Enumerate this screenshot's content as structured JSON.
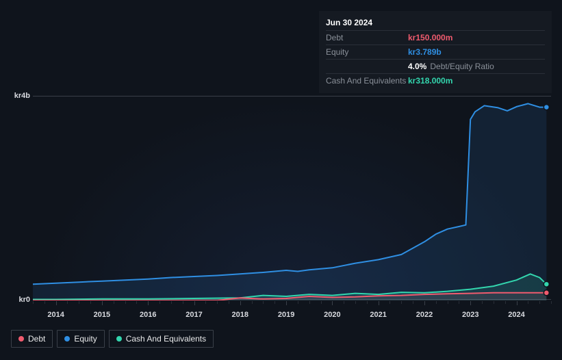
{
  "tooltip": {
    "date": "Jun 30 2024",
    "rows": [
      {
        "label": "Debt",
        "value": "kr150.000m",
        "color": "#f05b6e"
      },
      {
        "label": "Equity",
        "value": "kr3.789b",
        "color": "#2f8fe3"
      },
      {
        "label": "",
        "value": "4.0%",
        "suffix": "Debt/Equity Ratio",
        "color": "#ffffff"
      },
      {
        "label": "Cash And Equivalents",
        "value": "kr318.000m",
        "color": "#33d6ae"
      }
    ]
  },
  "chart": {
    "type": "area",
    "background_color": "#0f141c",
    "grid_color": "#3a4049",
    "ylim": [
      0,
      4
    ],
    "y_unit_prefix": "kr",
    "y_unit_suffix": "b",
    "y_ticks": [
      {
        "v": 0,
        "label": "kr0"
      },
      {
        "v": 4,
        "label": "kr4b"
      }
    ],
    "x_years": [
      2014,
      2015,
      2016,
      2017,
      2018,
      2019,
      2020,
      2021,
      2022,
      2023,
      2024
    ],
    "x_range": [
      2013.5,
      2024.75
    ],
    "minor_ticks_per_year": 4,
    "series": [
      {
        "name": "Equity",
        "color": "#2f8fe3",
        "fill_opacity": 0.12,
        "line_width": 2,
        "points": [
          [
            2013.5,
            0.32
          ],
          [
            2014,
            0.34
          ],
          [
            2014.5,
            0.36
          ],
          [
            2015,
            0.38
          ],
          [
            2015.5,
            0.4
          ],
          [
            2016,
            0.42
          ],
          [
            2016.5,
            0.45
          ],
          [
            2017,
            0.47
          ],
          [
            2017.5,
            0.49
          ],
          [
            2018,
            0.52
          ],
          [
            2018.5,
            0.55
          ],
          [
            2019,
            0.59
          ],
          [
            2019.25,
            0.57
          ],
          [
            2019.5,
            0.6
          ],
          [
            2020,
            0.64
          ],
          [
            2020.5,
            0.73
          ],
          [
            2021,
            0.8
          ],
          [
            2021.5,
            0.9
          ],
          [
            2022,
            1.15
          ],
          [
            2022.25,
            1.3
          ],
          [
            2022.5,
            1.4
          ],
          [
            2022.75,
            1.45
          ],
          [
            2022.9,
            1.48
          ],
          [
            2023.0,
            3.55
          ],
          [
            2023.1,
            3.7
          ],
          [
            2023.3,
            3.82
          ],
          [
            2023.6,
            3.78
          ],
          [
            2023.8,
            3.72
          ],
          [
            2024.0,
            3.8
          ],
          [
            2024.25,
            3.86
          ],
          [
            2024.5,
            3.79
          ],
          [
            2024.65,
            3.79
          ]
        ]
      },
      {
        "name": "Cash And Equivalents",
        "color": "#33d6ae",
        "fill_opacity": 0.14,
        "line_width": 2,
        "points": [
          [
            2013.5,
            0.02
          ],
          [
            2014,
            0.02
          ],
          [
            2015,
            0.03
          ],
          [
            2016,
            0.03
          ],
          [
            2017,
            0.04
          ],
          [
            2018,
            0.05
          ],
          [
            2018.5,
            0.1
          ],
          [
            2019,
            0.08
          ],
          [
            2019.5,
            0.12
          ],
          [
            2020,
            0.1
          ],
          [
            2020.5,
            0.14
          ],
          [
            2021,
            0.12
          ],
          [
            2021.5,
            0.16
          ],
          [
            2022,
            0.15
          ],
          [
            2022.5,
            0.18
          ],
          [
            2023,
            0.22
          ],
          [
            2023.5,
            0.28
          ],
          [
            2024,
            0.4
          ],
          [
            2024.3,
            0.52
          ],
          [
            2024.5,
            0.45
          ],
          [
            2024.65,
            0.32
          ]
        ]
      },
      {
        "name": "Debt",
        "color": "#f05b6e",
        "fill_opacity": 0.1,
        "line_width": 2,
        "points": [
          [
            2013.5,
            0.0
          ],
          [
            2016,
            0.0
          ],
          [
            2017.5,
            0.0
          ],
          [
            2018,
            0.05
          ],
          [
            2018.5,
            0.03
          ],
          [
            2019,
            0.04
          ],
          [
            2019.5,
            0.08
          ],
          [
            2020,
            0.06
          ],
          [
            2020.5,
            0.07
          ],
          [
            2021,
            0.09
          ],
          [
            2021.5,
            0.1
          ],
          [
            2022,
            0.12
          ],
          [
            2022.5,
            0.13
          ],
          [
            2023,
            0.14
          ],
          [
            2023.5,
            0.15
          ],
          [
            2024,
            0.15
          ],
          [
            2024.5,
            0.15
          ],
          [
            2024.65,
            0.15
          ]
        ]
      }
    ],
    "end_markers": true,
    "legend": [
      {
        "label": "Debt",
        "color": "#f05b6e"
      },
      {
        "label": "Equity",
        "color": "#2f8fe3"
      },
      {
        "label": "Cash And Equivalents",
        "color": "#33d6ae"
      }
    ]
  }
}
